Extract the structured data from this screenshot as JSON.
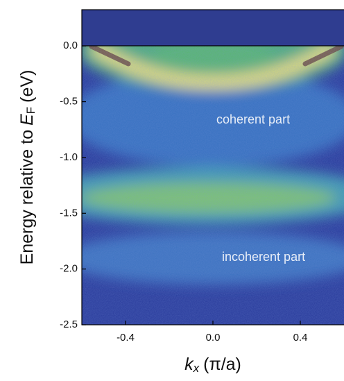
{
  "chart_data": {
    "type": "heatmap",
    "xlabel": {
      "symbol": "k",
      "subscript": "x",
      "unit": "(π/a)"
    },
    "ylabel": {
      "text": "Energy relative to",
      "symbol": "E",
      "subscript": "F",
      "unit": "(eV)"
    },
    "xlim": [
      -0.6,
      0.6
    ],
    "ylim": [
      -2.5,
      0.325
    ],
    "xticks": [
      -0.4,
      {
        "value": 0,
        "label": "0.0"
      },
      0.4
    ],
    "yticks": [
      {
        "value": 0,
        "label": "0.0"
      },
      -0.5,
      {
        "value": -1,
        "label": "-1.0"
      },
      -1.5,
      {
        "value": -2,
        "label": "-2.0"
      },
      -2.5
    ],
    "annotations": [
      "coherent part",
      "incoherent part"
    ]
  }
}
